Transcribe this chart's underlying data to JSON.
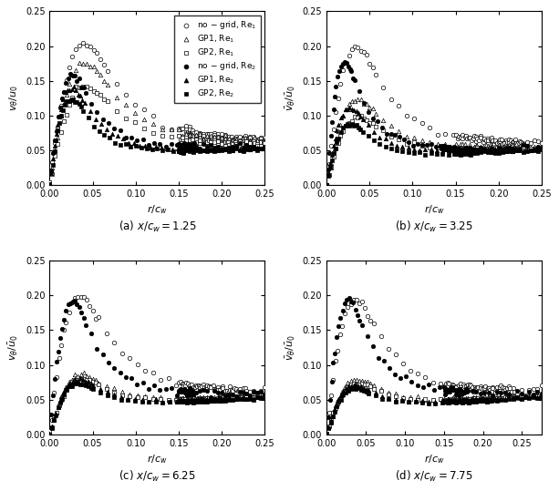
{
  "subplots": [
    {
      "label": "(a) $x/c_w = 1.25$",
      "xlabel": "$r/c_w$",
      "ylabel": "$v_{\\theta}/u_0$",
      "xlim": [
        0,
        0.25
      ],
      "ylim": [
        0,
        0.25
      ],
      "xticks": [
        0,
        0.05,
        0.1,
        0.15,
        0.2,
        0.25
      ],
      "yticks": [
        0,
        0.05,
        0.1,
        0.15,
        0.2,
        0.25
      ],
      "show_legend": true,
      "series": [
        {
          "peak_r": 0.045,
          "peak_v": 0.24,
          "v_inf": 0.068,
          "marker": "o",
          "filled": false,
          "seed": 1
        },
        {
          "peak_r": 0.045,
          "peak_v": 0.205,
          "v_inf": 0.067,
          "marker": "^",
          "filled": false,
          "seed": 2
        },
        {
          "peak_r": 0.045,
          "peak_v": 0.163,
          "v_inf": 0.066,
          "marker": "s",
          "filled": false,
          "seed": 3
        },
        {
          "peak_r": 0.028,
          "peak_v": 0.172,
          "v_inf": 0.066,
          "marker": "o",
          "filled": true,
          "seed": 4
        },
        {
          "peak_r": 0.027,
          "peak_v": 0.152,
          "v_inf": 0.064,
          "marker": "^",
          "filled": true,
          "seed": 5
        },
        {
          "peak_r": 0.026,
          "peak_v": 0.133,
          "v_inf": 0.063,
          "marker": "s",
          "filled": true,
          "seed": 6
        }
      ]
    },
    {
      "label": "(b) $x/c_w = 3.25$",
      "xlabel": "$r/c_w$",
      "ylabel": "$\\bar{v}_{\\theta}/\\bar{u}_0$",
      "xlim": [
        0,
        0.25
      ],
      "ylim": [
        0,
        0.25
      ],
      "xticks": [
        0,
        0.05,
        0.1,
        0.15,
        0.2,
        0.25
      ],
      "yticks": [
        0,
        0.05,
        0.1,
        0.15,
        0.2,
        0.25
      ],
      "show_legend": false,
      "series": [
        {
          "peak_r": 0.038,
          "peak_v": 0.228,
          "v_inf": 0.065,
          "marker": "o",
          "filled": false,
          "seed": 7
        },
        {
          "peak_r": 0.038,
          "peak_v": 0.135,
          "v_inf": 0.064,
          "marker": "^",
          "filled": false,
          "seed": 8
        },
        {
          "peak_r": 0.038,
          "peak_v": 0.105,
          "v_inf": 0.063,
          "marker": "s",
          "filled": false,
          "seed": 9
        },
        {
          "peak_r": 0.022,
          "peak_v": 0.192,
          "v_inf": 0.064,
          "marker": "o",
          "filled": true,
          "seed": 10
        },
        {
          "peak_r": 0.028,
          "peak_v": 0.118,
          "v_inf": 0.063,
          "marker": "^",
          "filled": true,
          "seed": 11
        },
        {
          "peak_r": 0.028,
          "peak_v": 0.092,
          "v_inf": 0.062,
          "marker": "s",
          "filled": true,
          "seed": 12
        }
      ]
    },
    {
      "label": "(c) $x/c_w = 6.25$",
      "xlabel": "$r/c_w$",
      "ylabel": "$v_{\\theta}/\\bar{u}_0$",
      "xlim": [
        0,
        0.25
      ],
      "ylim": [
        0,
        0.25
      ],
      "xticks": [
        0,
        0.05,
        0.1,
        0.15,
        0.2,
        0.25
      ],
      "yticks": [
        0,
        0.05,
        0.1,
        0.15,
        0.2,
        0.25
      ],
      "show_legend": false,
      "series": [
        {
          "peak_r": 0.038,
          "peak_v": 0.228,
          "v_inf": 0.068,
          "marker": "o",
          "filled": false,
          "seed": 13
        },
        {
          "peak_r": 0.038,
          "peak_v": 0.09,
          "v_inf": 0.067,
          "marker": "^",
          "filled": false,
          "seed": 14
        },
        {
          "peak_r": 0.038,
          "peak_v": 0.083,
          "v_inf": 0.066,
          "marker": "s",
          "filled": false,
          "seed": 15
        },
        {
          "peak_r": 0.028,
          "peak_v": 0.212,
          "v_inf": 0.067,
          "marker": "o",
          "filled": true,
          "seed": 16
        },
        {
          "peak_r": 0.034,
          "peak_v": 0.082,
          "v_inf": 0.066,
          "marker": "^",
          "filled": true,
          "seed": 17
        },
        {
          "peak_r": 0.034,
          "peak_v": 0.074,
          "v_inf": 0.065,
          "marker": "s",
          "filled": true,
          "seed": 18
        }
      ]
    },
    {
      "label": "(d) $x/c_w = 7.75$",
      "xlabel": "$r/c_w$",
      "ylabel": "$\\bar{v}_{\\theta}/\\bar{u}_0$",
      "xlim": [
        0,
        0.275
      ],
      "ylim": [
        0,
        0.25
      ],
      "xticks": [
        0,
        0.05,
        0.1,
        0.15,
        0.2,
        0.25
      ],
      "yticks": [
        0,
        0.05,
        0.1,
        0.15,
        0.2,
        0.25
      ],
      "show_legend": false,
      "series": [
        {
          "peak_r": 0.04,
          "peak_v": 0.222,
          "v_inf": 0.068,
          "marker": "o",
          "filled": false,
          "seed": 19
        },
        {
          "peak_r": 0.04,
          "peak_v": 0.082,
          "v_inf": 0.067,
          "marker": "^",
          "filled": false,
          "seed": 20
        },
        {
          "peak_r": 0.04,
          "peak_v": 0.075,
          "v_inf": 0.066,
          "marker": "s",
          "filled": false,
          "seed": 21
        },
        {
          "peak_r": 0.03,
          "peak_v": 0.213,
          "v_inf": 0.067,
          "marker": "o",
          "filled": true,
          "seed": 22
        },
        {
          "peak_r": 0.036,
          "peak_v": 0.072,
          "v_inf": 0.066,
          "marker": "^",
          "filled": true,
          "seed": 23
        },
        {
          "peak_r": 0.036,
          "peak_v": 0.066,
          "v_inf": 0.065,
          "marker": "s",
          "filled": true,
          "seed": 24
        }
      ]
    }
  ],
  "legend_entries": [
    {
      "label": "no − grid, Re$_1$",
      "marker": "o",
      "filled": false
    },
    {
      "label": "GP1, Re$_1$",
      "marker": "^",
      "filled": false
    },
    {
      "label": "GP2, Re$_1$",
      "marker": "s",
      "filled": false
    },
    {
      "label": "no − grid, Re$_2$",
      "marker": "o",
      "filled": true
    },
    {
      "label": "GP1, Re$_2$",
      "marker": "^",
      "filled": true
    },
    {
      "label": "GP2, Re$_2$",
      "marker": "s",
      "filled": true
    }
  ],
  "marker_size": 3.2,
  "figure_size": [
    6.13,
    5.39
  ],
  "dpi": 100
}
